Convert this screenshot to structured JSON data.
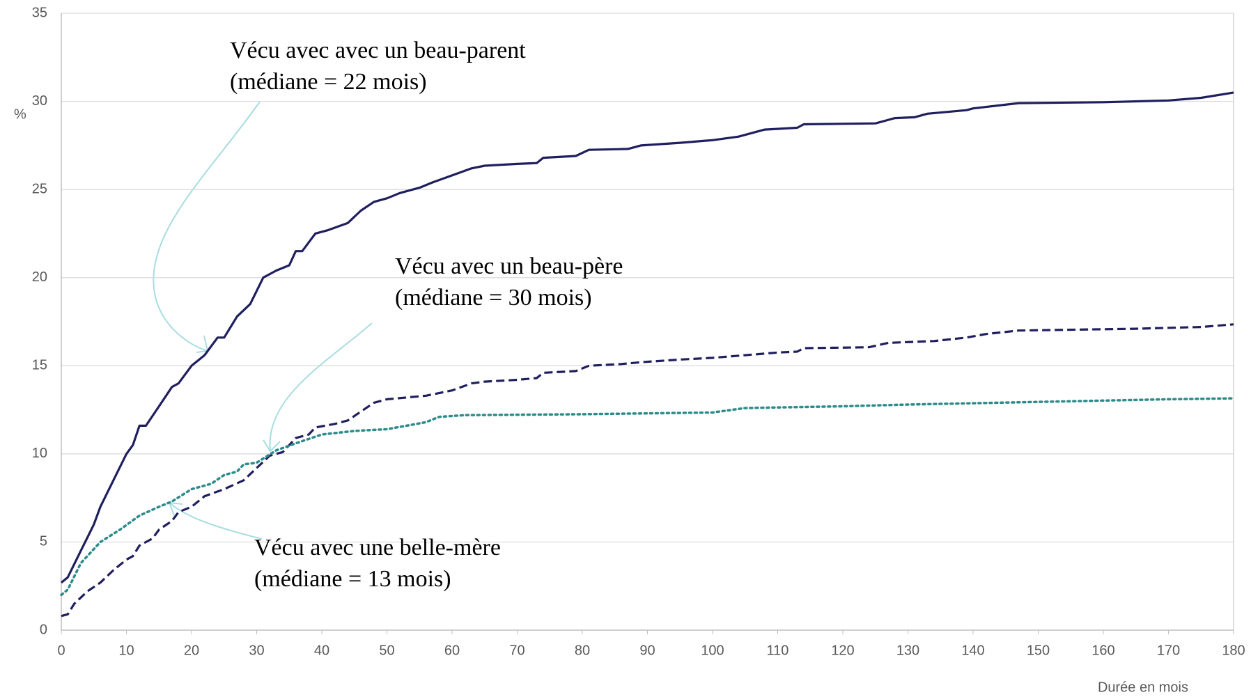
{
  "chart_data": {
    "type": "line",
    "xlabel": "Durée en mois",
    "ylabel": "%",
    "xlim": [
      0,
      180
    ],
    "xticks": [
      0,
      10,
      20,
      30,
      40,
      50,
      60,
      70,
      80,
      90,
      100,
      110,
      120,
      130,
      140,
      150,
      160,
      170,
      180
    ],
    "ylim": [
      0,
      35
    ],
    "yticks": [
      0,
      5,
      10,
      15,
      20,
      25,
      30,
      35
    ],
    "grid": true,
    "series": [
      {
        "name": "Vécu avec avec un beau-parent",
        "note": "(médiane = 22 mois)",
        "color": "#1f1f5f",
        "style": "solid",
        "x": [
          0,
          1,
          3,
          5,
          6,
          8,
          10,
          11,
          12,
          13,
          15,
          17,
          18,
          20,
          22,
          24,
          25,
          27,
          29,
          31,
          33,
          35,
          36,
          37,
          39,
          41,
          44,
          46,
          48,
          50,
          52,
          55,
          57,
          60,
          63,
          65,
          70,
          73,
          74,
          79,
          81,
          87,
          89,
          95,
          100,
          104,
          108,
          113,
          114,
          125,
          128,
          131,
          133,
          139,
          140,
          147,
          160,
          170,
          175,
          180
        ],
        "values": [
          2.7,
          3.0,
          4.5,
          6.0,
          7.0,
          8.5,
          10.0,
          10.5,
          11.6,
          11.6,
          12.7,
          13.8,
          14.0,
          15.0,
          15.6,
          16.6,
          16.6,
          17.8,
          18.5,
          20.0,
          20.4,
          20.7,
          21.5,
          21.5,
          22.5,
          22.7,
          23.1,
          23.8,
          24.3,
          24.5,
          24.8,
          25.1,
          25.4,
          25.8,
          26.2,
          26.35,
          26.45,
          26.5,
          26.8,
          26.9,
          27.25,
          27.3,
          27.5,
          27.65,
          27.8,
          28.0,
          28.4,
          28.5,
          28.7,
          28.75,
          29.05,
          29.1,
          29.3,
          29.5,
          29.6,
          29.9,
          29.95,
          30.05,
          30.2,
          30.5
        ]
      },
      {
        "name": "Vécu avec un beau-père",
        "note": "(médiane = 30 mois)",
        "color": "#1f1f5f",
        "style": "dashed",
        "x": [
          0,
          1,
          2,
          4,
          6,
          8,
          10,
          11,
          12,
          14,
          15,
          17,
          18,
          20,
          22,
          25,
          28,
          30,
          32,
          34,
          36,
          38,
          39,
          42,
          44,
          46,
          48,
          50,
          53,
          56,
          60,
          63,
          65,
          70,
          73,
          74,
          79,
          81,
          86,
          89,
          95,
          100,
          105,
          110,
          113,
          114,
          124,
          127,
          134,
          139,
          142,
          147,
          165,
          175,
          180
        ],
        "values": [
          0.8,
          0.9,
          1.5,
          2.2,
          2.7,
          3.4,
          4.0,
          4.2,
          4.8,
          5.2,
          5.7,
          6.2,
          6.7,
          7.0,
          7.6,
          8.0,
          8.5,
          9.2,
          9.9,
          10.1,
          10.9,
          11.1,
          11.5,
          11.7,
          11.9,
          12.4,
          12.9,
          13.1,
          13.2,
          13.3,
          13.6,
          14.0,
          14.1,
          14.2,
          14.3,
          14.6,
          14.7,
          15.0,
          15.1,
          15.2,
          15.35,
          15.45,
          15.6,
          15.75,
          15.8,
          16.0,
          16.05,
          16.3,
          16.4,
          16.6,
          16.8,
          17.0,
          17.1,
          17.2,
          17.35
        ]
      },
      {
        "name": "Vécu avec une belle-mère",
        "note": "(médiane = 13 mois)",
        "color": "#2e8b8b",
        "style": "dotted",
        "x": [
          0,
          1,
          3,
          6,
          9,
          12,
          15,
          17,
          20,
          23,
          25,
          27,
          28,
          30,
          33,
          36,
          40,
          45,
          50,
          53,
          56,
          58,
          62,
          80,
          100,
          105,
          120,
          130,
          150,
          170,
          180
        ],
        "values": [
          2.0,
          2.3,
          3.8,
          5.0,
          5.7,
          6.5,
          7.0,
          7.3,
          8.0,
          8.3,
          8.8,
          9.0,
          9.4,
          9.5,
          10.2,
          10.6,
          11.1,
          11.3,
          11.4,
          11.6,
          11.8,
          12.1,
          12.2,
          12.25,
          12.35,
          12.6,
          12.7,
          12.8,
          12.95,
          13.1,
          13.15
        ]
      }
    ]
  }
}
